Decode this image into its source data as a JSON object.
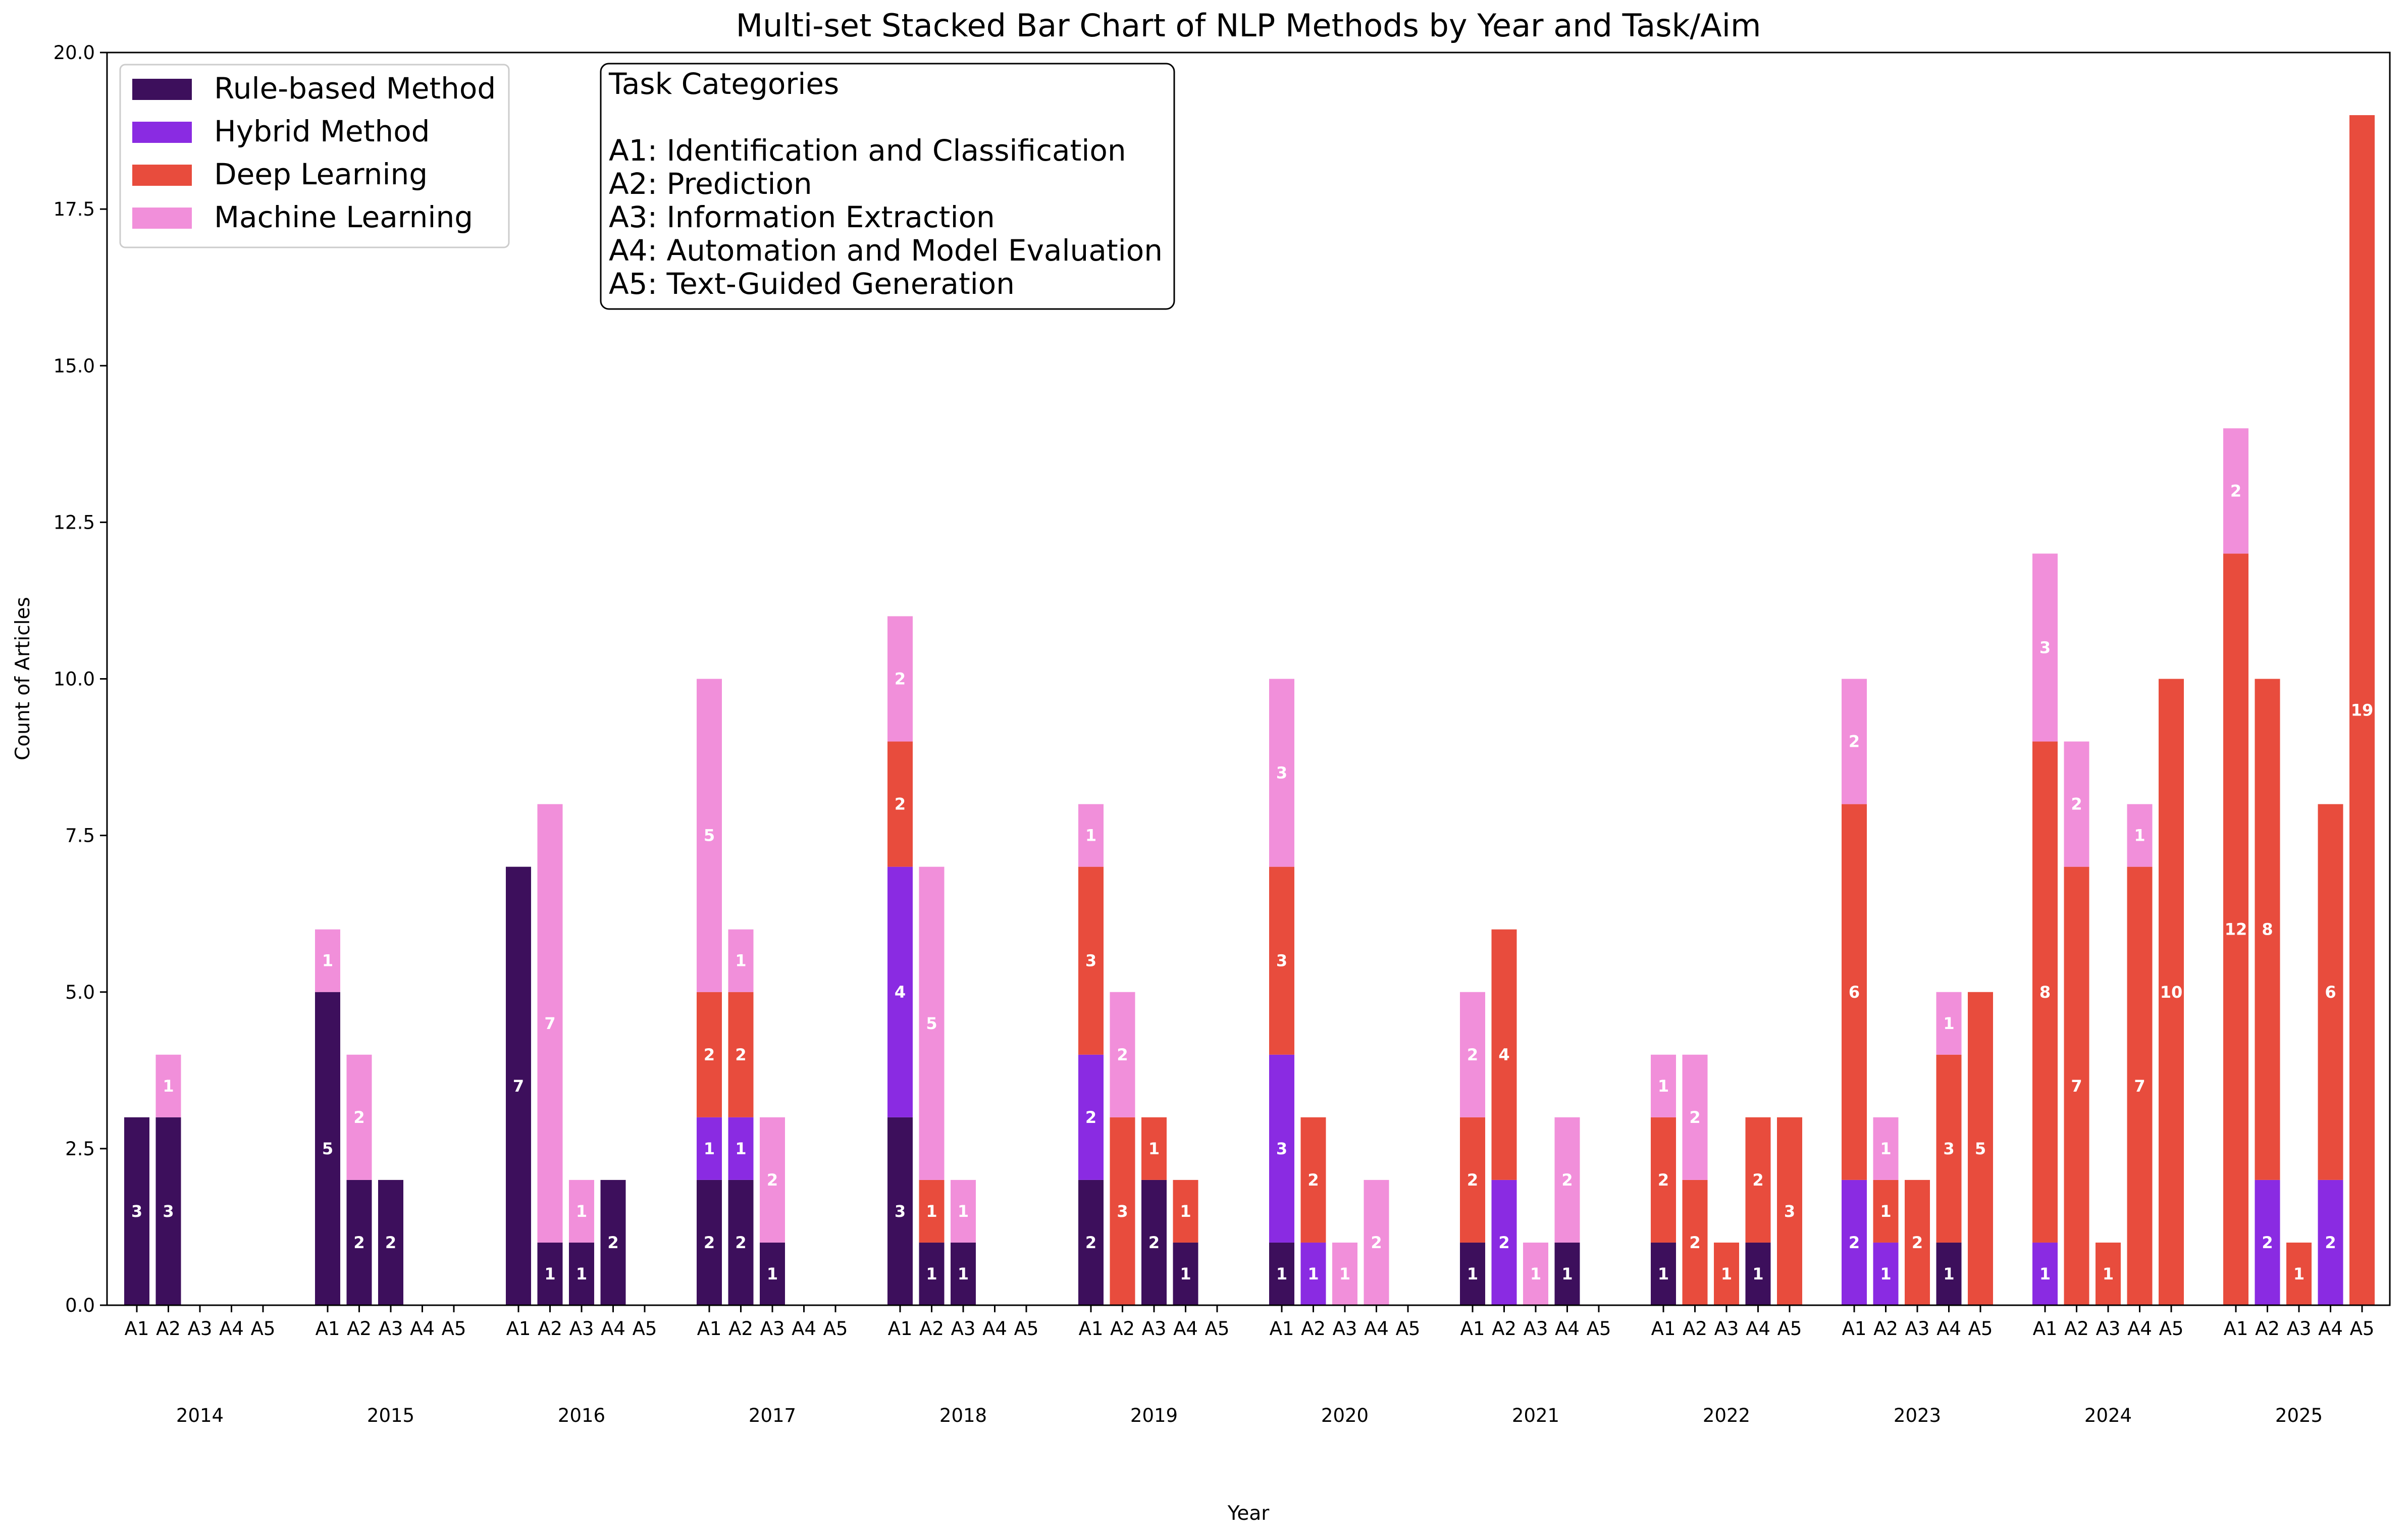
{
  "chart_data": {
    "type": "bar",
    "stacked": true,
    "title": "Multi-set Stacked Bar Chart of NLP Methods by Year and Task/Aim",
    "xlabel": "Year",
    "ylabel": "Count of Articles",
    "ylim": [
      0,
      20
    ],
    "yticks": [
      "0.0",
      "2.5",
      "5.0",
      "7.5",
      "10.0",
      "12.5",
      "15.0",
      "17.5",
      "20.0"
    ],
    "ytick_values": [
      0,
      2.5,
      5,
      7.5,
      10,
      12.5,
      15,
      17.5,
      20
    ],
    "grid": false,
    "years": [
      "2014",
      "2015",
      "2016",
      "2017",
      "2018",
      "2019",
      "2020",
      "2021",
      "2022",
      "2023",
      "2024",
      "2025"
    ],
    "tasks": [
      "A1",
      "A2",
      "A3",
      "A4",
      "A5"
    ],
    "series": [
      {
        "name": "Rule-based Method",
        "color": "#3d0f5c",
        "values": [
          [
            3,
            3,
            0,
            0,
            0
          ],
          [
            5,
            2,
            2,
            0,
            0
          ],
          [
            7,
            1,
            1,
            2,
            0
          ],
          [
            2,
            2,
            1,
            0,
            0
          ],
          [
            3,
            1,
            1,
            0,
            0
          ],
          [
            2,
            0,
            2,
            1,
            0
          ],
          [
            1,
            0,
            0,
            0,
            0
          ],
          [
            1,
            0,
            0,
            1,
            0
          ],
          [
            1,
            0,
            0,
            1,
            0
          ],
          [
            0,
            0,
            0,
            1,
            0
          ],
          [
            0,
            0,
            0,
            0,
            0
          ],
          [
            0,
            0,
            0,
            0,
            0
          ]
        ]
      },
      {
        "name": "Hybrid Method",
        "color": "#8a2be2",
        "values": [
          [
            0,
            0,
            0,
            0,
            0
          ],
          [
            0,
            0,
            0,
            0,
            0
          ],
          [
            0,
            0,
            0,
            0,
            0
          ],
          [
            1,
            1,
            0,
            0,
            0
          ],
          [
            4,
            0,
            0,
            0,
            0
          ],
          [
            2,
            0,
            0,
            0,
            0
          ],
          [
            3,
            1,
            0,
            0,
            0
          ],
          [
            0,
            2,
            0,
            0,
            0
          ],
          [
            0,
            0,
            0,
            0,
            0
          ],
          [
            2,
            1,
            0,
            0,
            0
          ],
          [
            1,
            0,
            0,
            0,
            0
          ],
          [
            0,
            2,
            0,
            2,
            0
          ]
        ]
      },
      {
        "name": "Deep Learning",
        "color": "#e84c3d",
        "values": [
          [
            0,
            0,
            0,
            0,
            0
          ],
          [
            0,
            0,
            0,
            0,
            0
          ],
          [
            0,
            0,
            0,
            0,
            0
          ],
          [
            2,
            2,
            0,
            0,
            0
          ],
          [
            2,
            1,
            0,
            0,
            0
          ],
          [
            3,
            3,
            1,
            1,
            0
          ],
          [
            3,
            2,
            0,
            0,
            0
          ],
          [
            2,
            4,
            0,
            0,
            0
          ],
          [
            2,
            2,
            1,
            2,
            3
          ],
          [
            6,
            1,
            2,
            3,
            5
          ],
          [
            8,
            7,
            1,
            7,
            10
          ],
          [
            12,
            8,
            1,
            6,
            19
          ]
        ]
      },
      {
        "name": "Machine Learning",
        "color": "#f18fda",
        "values": [
          [
            0,
            1,
            0,
            0,
            0
          ],
          [
            1,
            2,
            0,
            0,
            0
          ],
          [
            0,
            7,
            1,
            0,
            0
          ],
          [
            5,
            1,
            2,
            0,
            0
          ],
          [
            2,
            5,
            1,
            0,
            0
          ],
          [
            1,
            2,
            0,
            0,
            0
          ],
          [
            3,
            0,
            1,
            2,
            0
          ],
          [
            2,
            0,
            1,
            2,
            0
          ],
          [
            1,
            2,
            0,
            0,
            0
          ],
          [
            2,
            1,
            0,
            1,
            0
          ],
          [
            3,
            2,
            0,
            1,
            0
          ],
          [
            2,
            0,
            0,
            0,
            0
          ]
        ]
      }
    ],
    "legend": {
      "placement": "top-left",
      "entries": [
        "Rule-based Method",
        "Hybrid Method",
        "Deep Learning",
        "Machine Learning"
      ]
    },
    "annotation": {
      "title": "Task Categories",
      "lines": [
        "A1: Identification and Classification",
        "A2: Prediction",
        "A3: Information Extraction",
        "A4: Automation and Model Evaluation",
        "A5: Text-Guided Generation"
      ]
    }
  }
}
